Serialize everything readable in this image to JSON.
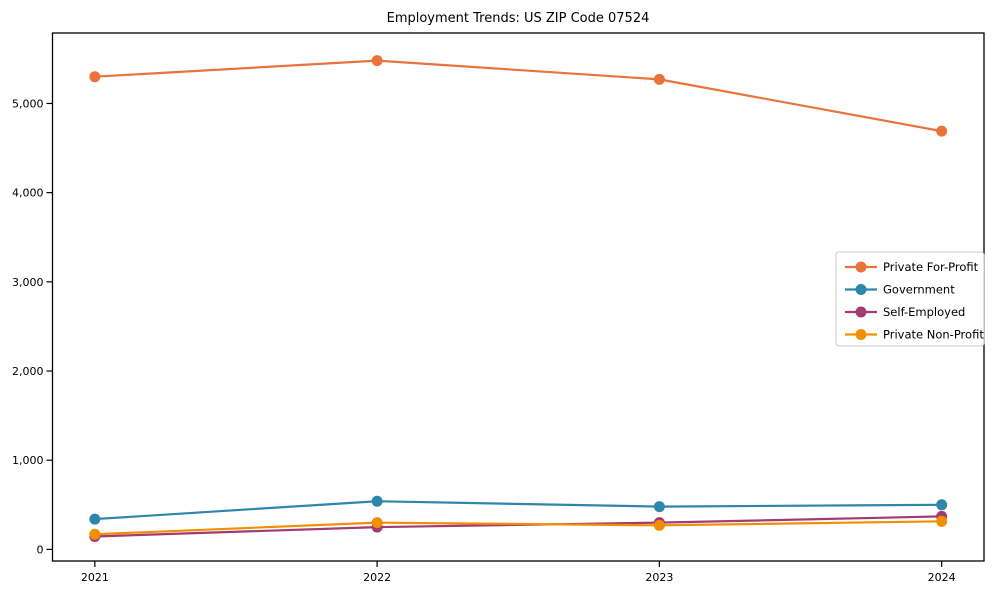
{
  "page": {
    "background": "#ffffff"
  },
  "chart_data": {
    "type": "line",
    "title": "Employment Trends: US ZIP Code 07524",
    "xlabel": "",
    "ylabel": "",
    "x": [
      2021,
      2022,
      2023,
      2024
    ],
    "x_tick_labels": [
      "2021",
      "2022",
      "2023",
      "2024"
    ],
    "series": [
      {
        "name": "Private For-Profit",
        "color": "#E8743B",
        "values": [
          5300,
          5480,
          5270,
          4690
        ]
      },
      {
        "name": "Government",
        "color": "#2E86AB",
        "values": [
          340,
          540,
          480,
          500
        ]
      },
      {
        "name": "Self-Employed",
        "color": "#A23B72",
        "values": [
          145,
          250,
          300,
          370
        ]
      },
      {
        "name": "Private Non-Profit",
        "color": "#F18F01",
        "values": [
          170,
          300,
          270,
          315
        ]
      }
    ],
    "y_ticks": [
      0,
      1000,
      2000,
      3000,
      4000,
      5000
    ],
    "y_tick_labels": [
      "0",
      "1,000",
      "2,000",
      "3,000",
      "4,000",
      "5,000"
    ],
    "xlim": [
      2020.85,
      2024.15
    ],
    "ylim": [
      -130,
      5790
    ],
    "grid": false,
    "legend_position": "center right",
    "axis_color": "#000000",
    "legend_border_color": "#cccccc",
    "marker": "o"
  }
}
